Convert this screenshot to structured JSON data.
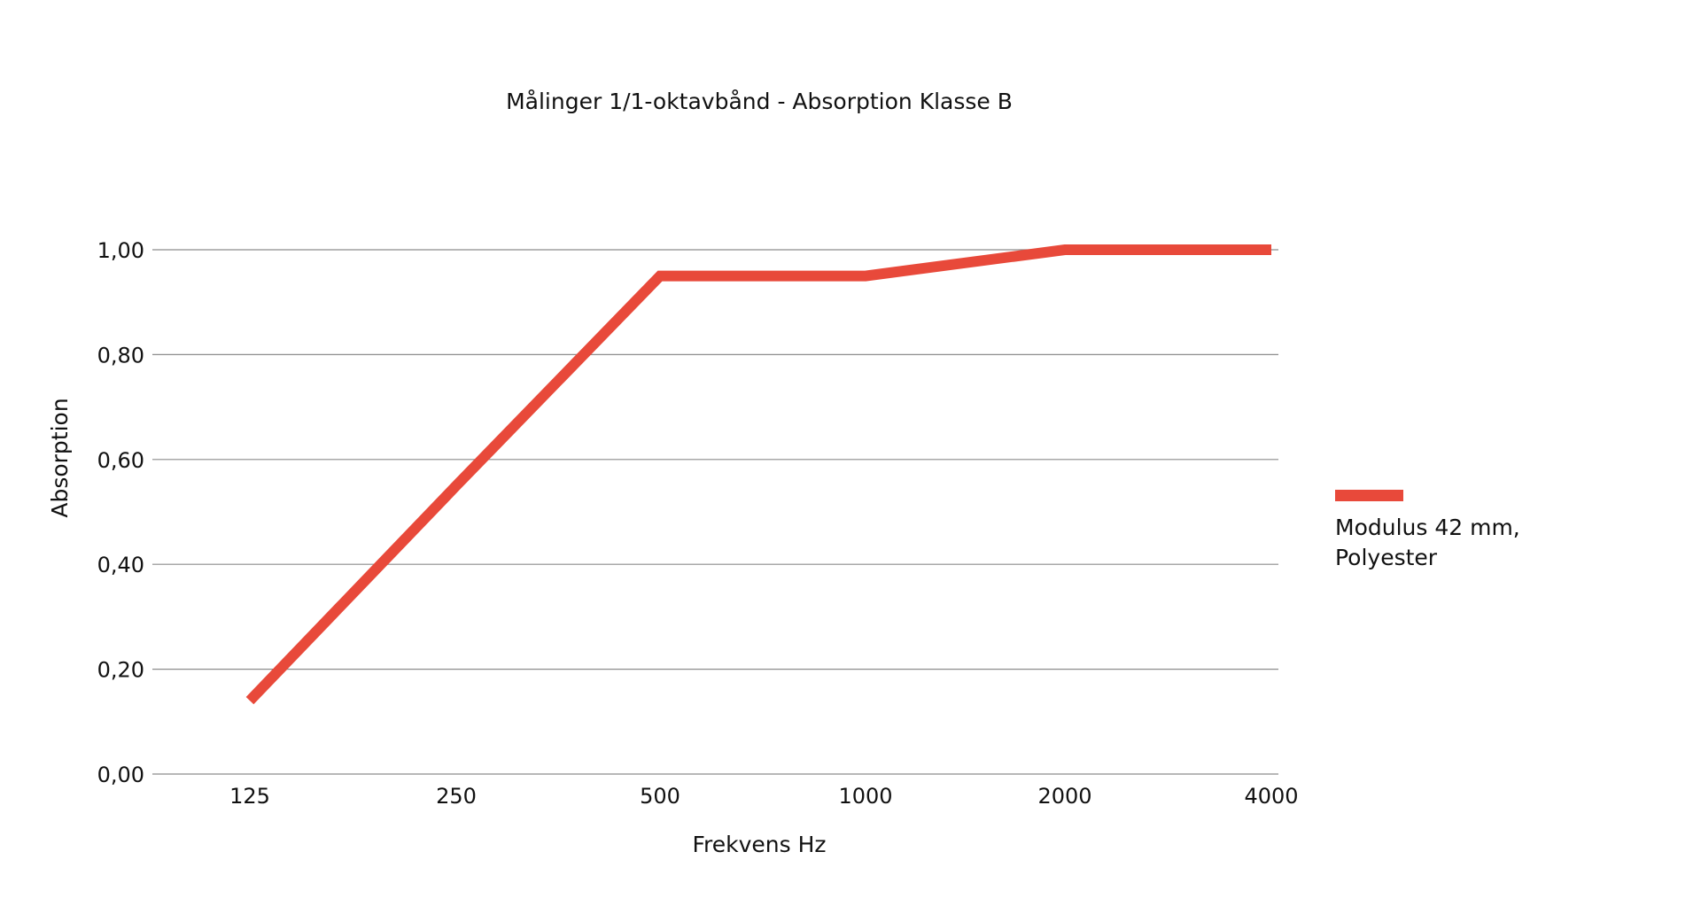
{
  "chart_data": {
    "type": "line",
    "title": "Målinger  1/1-oktavbånd - Absorption Klasse B",
    "xlabel": "Frekvens Hz",
    "ylabel": "Absorption",
    "categories": [
      "125",
      "250",
      "500",
      "1000",
      "2000",
      "4000"
    ],
    "ylim": [
      0,
      1
    ],
    "yticks": [
      "0,00",
      "0,20",
      "0,40",
      "0,60",
      "0,80",
      "1,00"
    ],
    "grid": true,
    "legend_position": "right",
    "series": [
      {
        "name": "Modulus 42 mm, Polyester",
        "name_lines": [
          "Modulus 42 mm,",
          "Polyester"
        ],
        "color": "#e8493a",
        "values": [
          0.14,
          0.55,
          0.95,
          0.95,
          1.0,
          1.0
        ]
      }
    ]
  }
}
